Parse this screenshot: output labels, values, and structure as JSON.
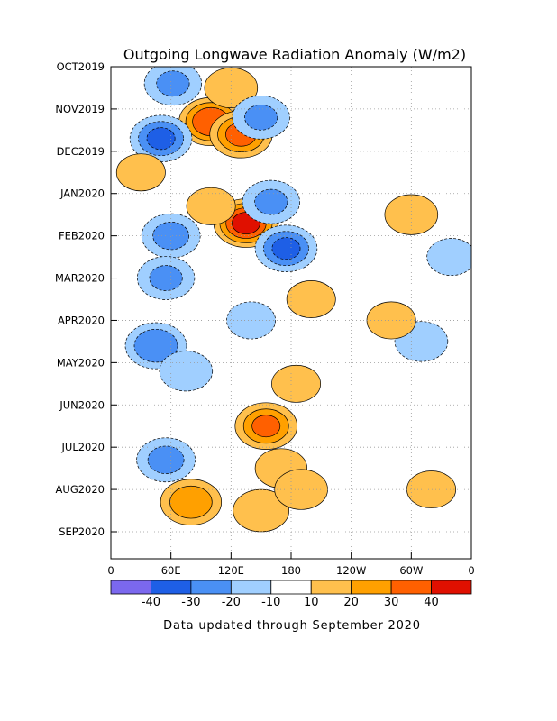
{
  "chart_data": {
    "type": "heatmap",
    "title": "Outgoing Longwave Radiation Anomaly (W/m2)",
    "footer": "Data updated through September 2020",
    "y_ticks": [
      "OCT2019",
      "NOV2019",
      "DEC2019",
      "JAN2020",
      "FEB2020",
      "MAR2020",
      "APR2020",
      "MAY2020",
      "JUN2020",
      "JUL2020",
      "AUG2020",
      "SEP2020"
    ],
    "x_ticks": [
      "0",
      "60E",
      "120E",
      "180",
      "120W",
      "60W",
      "0"
    ],
    "x_range": [
      0,
      360
    ],
    "colorbar": {
      "labels": [
        "-40",
        "-30",
        "-20",
        "-10",
        "10",
        "20",
        "30",
        "40"
      ],
      "colors": [
        "#7b68ee",
        "#1e5fe6",
        "#4a90f5",
        "#a0cfff",
        "#ffffff",
        "#ffc04d",
        "#ffa000",
        "#ff6000",
        "#e01000"
      ]
    },
    "grid": true,
    "anomalies": [
      {
        "lon": 100,
        "time": 1.3,
        "value": 38
      },
      {
        "lon": 130,
        "time": 1.6,
        "value": 32
      },
      {
        "lon": 120,
        "time": 0.5,
        "value": 15
      },
      {
        "lon": 150,
        "time": 1.2,
        "value": -20
      },
      {
        "lon": 50,
        "time": 1.7,
        "value": -30
      },
      {
        "lon": 62,
        "time": 0.4,
        "value": -20
      },
      {
        "lon": 135,
        "time": 3.7,
        "value": 42
      },
      {
        "lon": 100,
        "time": 3.3,
        "value": 12
      },
      {
        "lon": 160,
        "time": 3.2,
        "value": -20
      },
      {
        "lon": 175,
        "time": 4.3,
        "value": -30
      },
      {
        "lon": 60,
        "time": 4.0,
        "value": -22
      },
      {
        "lon": 55,
        "time": 5.0,
        "value": -20
      },
      {
        "lon": 200,
        "time": 5.5,
        "value": 12
      },
      {
        "lon": 45,
        "time": 6.6,
        "value": -28
      },
      {
        "lon": 75,
        "time": 7.2,
        "value": -15
      },
      {
        "lon": 155,
        "time": 8.5,
        "value": 30
      },
      {
        "lon": 185,
        "time": 7.5,
        "value": 12
      },
      {
        "lon": 55,
        "time": 9.3,
        "value": -22
      },
      {
        "lon": 80,
        "time": 10.3,
        "value": 27
      },
      {
        "lon": 150,
        "time": 10.5,
        "value": 18
      },
      {
        "lon": 170,
        "time": 9.5,
        "value": 14
      },
      {
        "lon": 310,
        "time": 6.5,
        "value": -15
      },
      {
        "lon": 300,
        "time": 3.5,
        "value": 15
      },
      {
        "lon": 340,
        "time": 4.5,
        "value": -12
      },
      {
        "lon": 280,
        "time": 6.0,
        "value": 12
      },
      {
        "lon": 30,
        "time": 2.5,
        "value": 12
      },
      {
        "lon": 140,
        "time": 6.0,
        "value": -12
      },
      {
        "lon": 190,
        "time": 10.0,
        "value": 15
      },
      {
        "lon": 320,
        "time": 10.0,
        "value": 12
      }
    ]
  }
}
